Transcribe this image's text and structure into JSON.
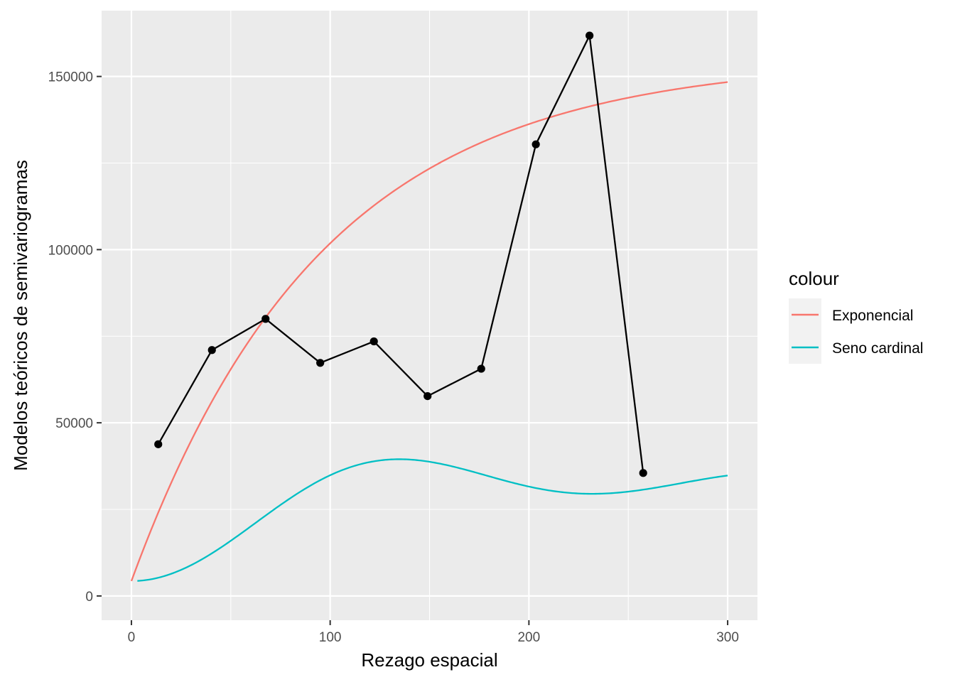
{
  "chart_data": {
    "type": "line",
    "xlabel": "Rezago espacial",
    "ylabel": "Modelos teóricos de semivariogramas",
    "xlim": [
      -15,
      315
    ],
    "ylim": [
      -7000,
      169000
    ],
    "x_ticks": [
      0,
      100,
      200,
      300
    ],
    "x_minor_ticks": [
      50,
      150,
      250
    ],
    "y_ticks": [
      0,
      50000,
      100000,
      150000
    ],
    "y_minor_ticks": [
      25000,
      75000,
      125000
    ],
    "background": "#ebebeb",
    "grid": true,
    "legend": {
      "title": "colour",
      "position": "right",
      "entries": [
        {
          "label": "Exponencial",
          "color": "#f8766d"
        },
        {
          "label": "Seno cardinal",
          "color": "#00bfc4"
        }
      ]
    },
    "empirical": {
      "color": "#000000",
      "points": [
        {
          "x": 13.5,
          "y": 43800
        },
        {
          "x": 40.5,
          "y": 71000
        },
        {
          "x": 67.5,
          "y": 80000
        },
        {
          "x": 95,
          "y": 67300
        },
        {
          "x": 122,
          "y": 73500
        },
        {
          "x": 149,
          "y": 57700
        },
        {
          "x": 176,
          "y": 65600
        },
        {
          "x": 203.5,
          "y": 130400
        },
        {
          "x": 230.5,
          "y": 161800
        },
        {
          "x": 257.5,
          "y": 35500
        }
      ]
    },
    "series": [
      {
        "name": "Exponencial",
        "color": "#f8766d",
        "model": "exponential",
        "nugget": 4300,
        "psill": 150700,
        "range": 96,
        "x_range": [
          0,
          300
        ]
      },
      {
        "name": "Seno cardinal",
        "color": "#00bfc4",
        "model": "wave",
        "nugget": 4300,
        "psill": 28900,
        "range": 30,
        "x_range": [
          3,
          300
        ]
      }
    ]
  }
}
